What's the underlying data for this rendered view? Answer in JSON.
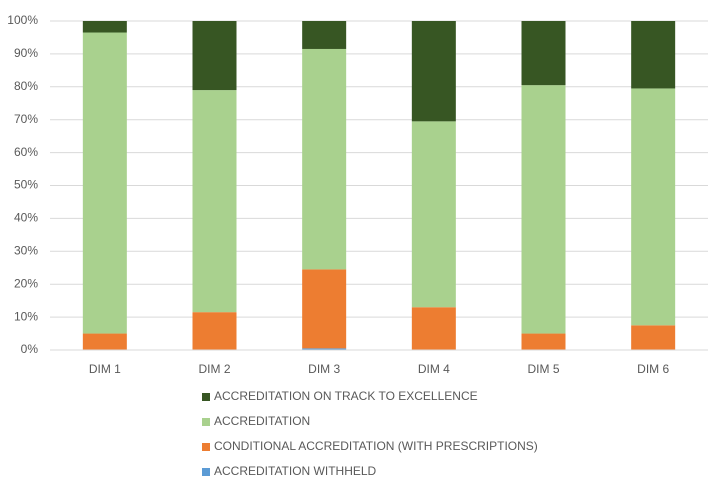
{
  "chart_data": {
    "type": "stacked_bar",
    "categories": [
      "DIM 1",
      "DIM 2",
      "DIM 3",
      "DIM 4",
      "DIM 5",
      "DIM 6"
    ],
    "series": [
      {
        "name": "ACCREDITATION WITHHELD",
        "color": "#5b9bd5",
        "values": [
          0,
          0,
          0.5,
          0,
          0,
          0
        ]
      },
      {
        "name": "CONDITIONAL ACCREDITATION (WITH PRESCRIPTIONS)",
        "color": "#ed7d31",
        "values": [
          5,
          11.5,
          24,
          13,
          5,
          7.5
        ]
      },
      {
        "name": "ACCREDITATION",
        "color": "#a9d18e",
        "values": [
          91.5,
          67.5,
          67,
          56.5,
          75.5,
          72
        ]
      },
      {
        "name": "ACCREDITATION ON TRACK TO EXCELLENCE",
        "color": "#375623",
        "values": [
          3.5,
          21,
          8.5,
          30.5,
          19.5,
          20.5
        ]
      }
    ],
    "ylim": [
      0,
      100
    ],
    "yticks": [
      {
        "value": 0,
        "label": "0%"
      },
      {
        "value": 10,
        "label": "10%"
      },
      {
        "value": 20,
        "label": "20%"
      },
      {
        "value": 30,
        "label": "30%"
      },
      {
        "value": 40,
        "label": "40%"
      },
      {
        "value": 50,
        "label": "50%"
      },
      {
        "value": 60,
        "label": "60%"
      },
      {
        "value": 70,
        "label": "70%"
      },
      {
        "value": 80,
        "label": "80%"
      },
      {
        "value": 90,
        "label": "90%"
      },
      {
        "value": 100,
        "label": "100%"
      }
    ],
    "grid": true,
    "legend": "bottom"
  }
}
